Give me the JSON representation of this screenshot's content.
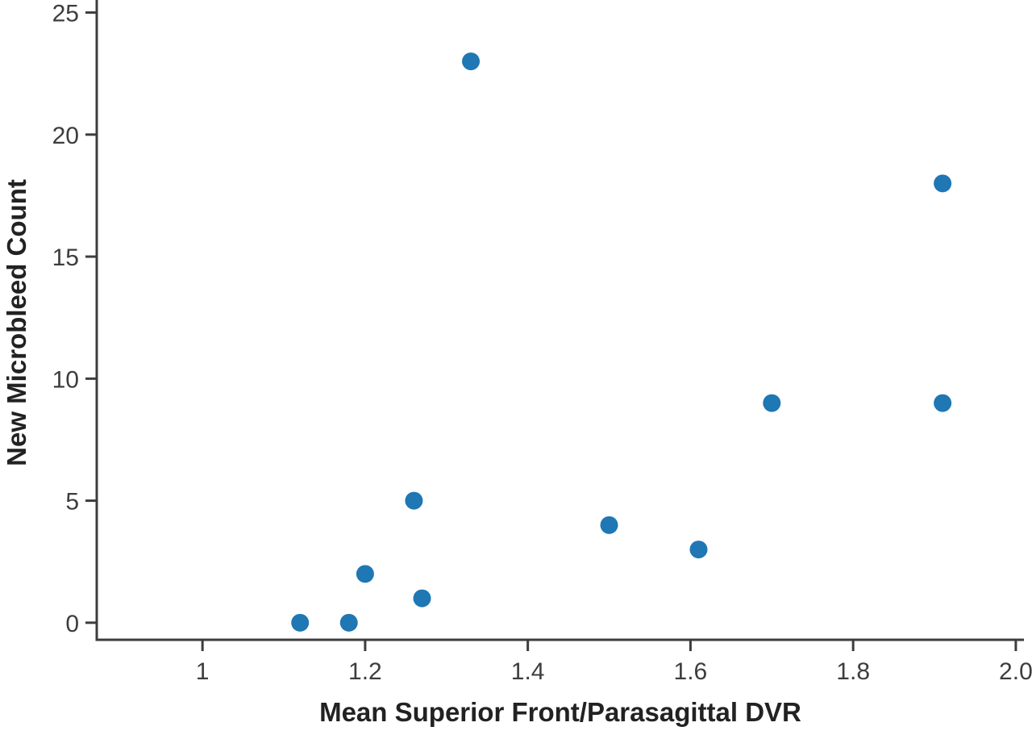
{
  "chart_data": {
    "type": "scatter",
    "title": "",
    "xlabel": "Mean Superior Front/Parasagittal DVR",
    "ylabel": "New Microbleed Count",
    "xlim": [
      0.87,
      2.01
    ],
    "ylim": [
      -0.7,
      25.25
    ],
    "grid": false,
    "legend": null,
    "x_ticks": {
      "values": [
        1,
        1.2,
        1.4,
        1.6,
        1.8,
        2.0
      ],
      "labels": [
        "1",
        "1.2",
        "1.4",
        "1.6",
        "1.8",
        "2.0"
      ]
    },
    "y_ticks": {
      "values": [
        0,
        5,
        10,
        15,
        20,
        25
      ],
      "labels": [
        "0",
        "5",
        "10",
        "15",
        "20",
        "25"
      ]
    },
    "points": [
      {
        "x": 1.12,
        "y": 0
      },
      {
        "x": 1.18,
        "y": 0
      },
      {
        "x": 1.2,
        "y": 2
      },
      {
        "x": 1.27,
        "y": 1
      },
      {
        "x": 1.26,
        "y": 5
      },
      {
        "x": 1.33,
        "y": 23
      },
      {
        "x": 1.5,
        "y": 4
      },
      {
        "x": 1.61,
        "y": 3
      },
      {
        "x": 1.7,
        "y": 9
      },
      {
        "x": 1.91,
        "y": 9
      },
      {
        "x": 1.91,
        "y": 18
      }
    ],
    "colors": {
      "point_color": "#1f77b4",
      "axis_color": "#3d3d3d",
      "tick_label_color": "#3d3d3d",
      "axis_label_color": "#222222",
      "background_color": "#ffffff"
    }
  }
}
